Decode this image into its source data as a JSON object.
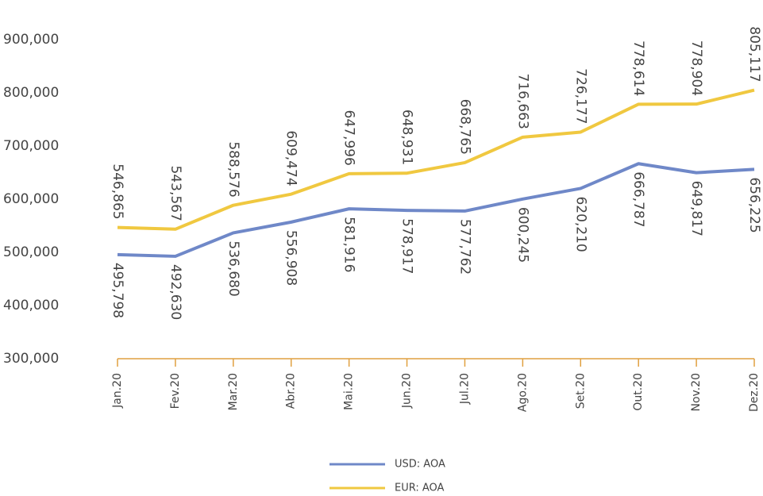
{
  "chart_data": {
    "type": "line",
    "categories": [
      "Jan.20",
      "Fev.20",
      "Mar.20",
      "Abr.20",
      "Mai.20",
      "Jun.20",
      "Jul.20",
      "Ago.20",
      "Set.20",
      "Out.20",
      "Nov.20",
      "Dez.20"
    ],
    "series": [
      {
        "name": "USD: AOA",
        "color": "#6f88c8",
        "position": "below",
        "values": [
          495.798,
          492.63,
          536.68,
          556.908,
          581.916,
          578.917,
          577.762,
          600.245,
          620.21,
          666.787,
          649.817,
          656.225
        ],
        "value_labels": [
          "495,798",
          "492,630",
          "536,680",
          "556,908",
          "581,916",
          "578,917",
          "577,762",
          "600,245",
          "620,210",
          "666,787",
          "649,817",
          "656,225"
        ]
      },
      {
        "name": "EUR: AOA",
        "color": "#f0c840",
        "position": "above",
        "values": [
          546.865,
          543.567,
          588.576,
          609.474,
          647.996,
          648.931,
          668.765,
          716.663,
          726.177,
          778.614,
          778.904,
          805.117
        ],
        "value_labels": [
          "546,865",
          "543,567",
          "588,576",
          "609,474",
          "647,996",
          "648,931",
          "668,765",
          "716,663",
          "726,177",
          "778,614",
          "778,904",
          "805,117"
        ]
      }
    ],
    "ylim": [
      300,
      900
    ],
    "yticks": [
      {
        "value": 300,
        "label": "300,000"
      },
      {
        "value": 400,
        "label": "400,000"
      },
      {
        "value": 500,
        "label": "500,000"
      },
      {
        "value": 600,
        "label": "600,000"
      },
      {
        "value": 700,
        "label": "700,000"
      },
      {
        "value": 800,
        "label": "800,000"
      },
      {
        "value": 900,
        "label": "900,000"
      }
    ],
    "axis_color": "#e0a040"
  }
}
